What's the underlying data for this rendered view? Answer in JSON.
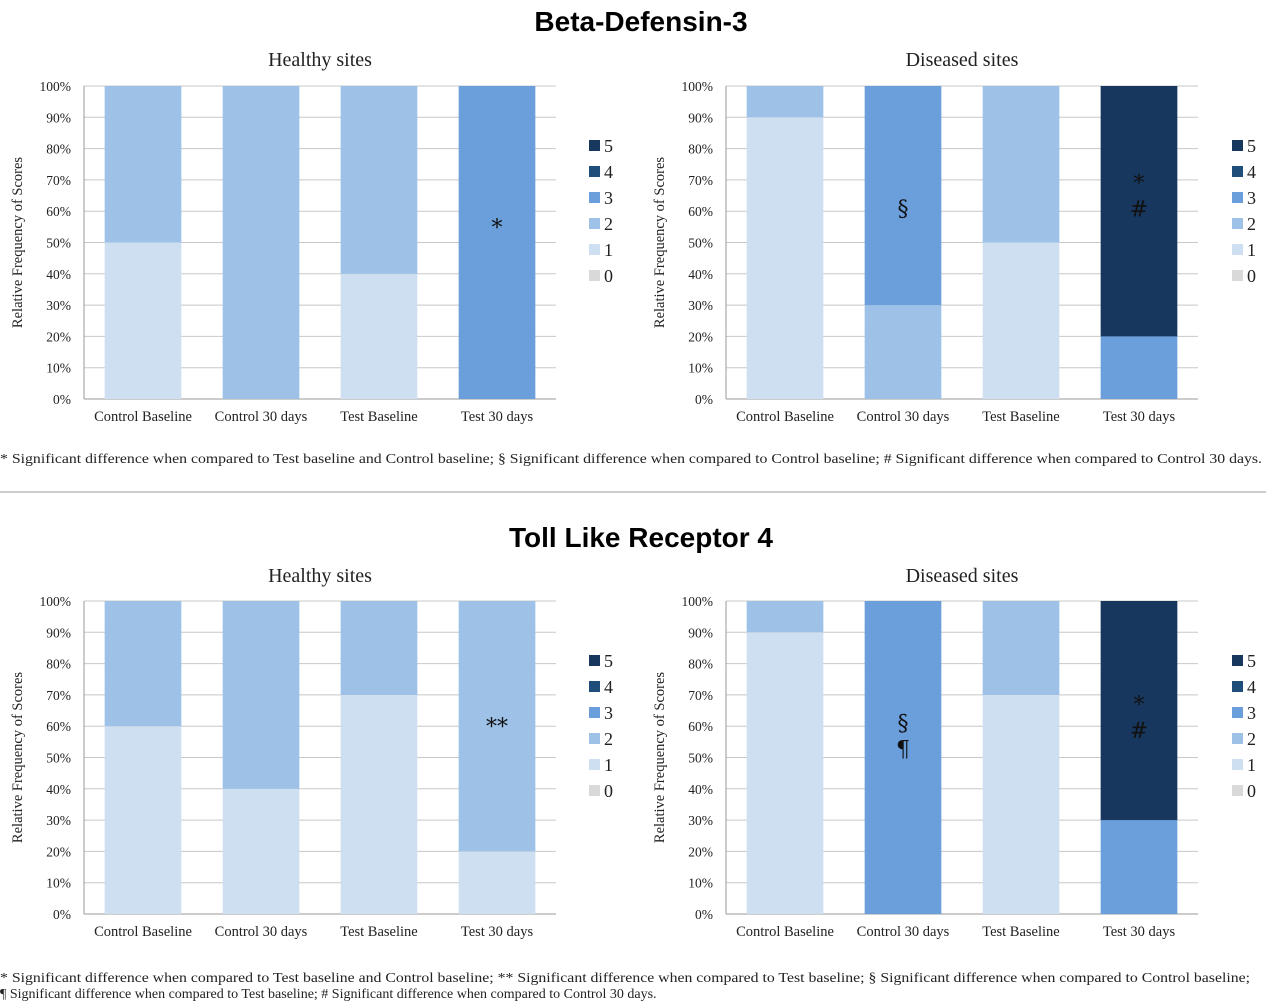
{
  "figures": [
    {
      "title": "Beta-Defensin-3",
      "footnote_lines": [
        "* Significant difference when compared to Test baseline and Control baseline; § Significant difference when compared to Control baseline; # Significant difference when compared to Control 30 days."
      ]
    },
    {
      "title": "Toll Like Receptor 4",
      "footnote_lines": [
        "* Significant difference when compared to Test baseline and Control baseline; ** Significant difference when compared to Test baseline; § Significant difference when compared to Control baseline;",
        "¶ Significant difference when compared to Test baseline; # Significant difference when compared to Control 30 days."
      ]
    }
  ],
  "colors": {
    "0": "#d9d9d9",
    "1": "#cfdff2",
    "2": "#9dc1e7",
    "3": "#6a9fdc",
    "4": "#1f4e7a",
    "5": "#17375e",
    "grid": "#c8c8c8",
    "axis": "#999999"
  },
  "chart_data": [
    {
      "type": "bar",
      "stacked": true,
      "title": "Healthy sites",
      "ylabel": "Relative Frequency of Scores",
      "ylim": [
        0,
        100
      ],
      "yticks": [
        "0%",
        "10%",
        "20%",
        "30%",
        "40%",
        "50%",
        "60%",
        "70%",
        "80%",
        "90%",
        "100%"
      ],
      "categories": [
        "Control Baseline",
        "Control 30 days",
        "Test Baseline",
        "Test 30 days"
      ],
      "legend": [
        "5",
        "4",
        "3",
        "2",
        "1",
        "0"
      ],
      "legend_position": "right",
      "series": [
        {
          "name": "0",
          "values": [
            0,
            0,
            0,
            0
          ]
        },
        {
          "name": "1",
          "values": [
            50,
            0,
            40,
            0
          ]
        },
        {
          "name": "2",
          "values": [
            50,
            100,
            60,
            0
          ]
        },
        {
          "name": "3",
          "values": [
            0,
            0,
            0,
            100
          ]
        },
        {
          "name": "4",
          "values": [
            0,
            0,
            0,
            0
          ]
        },
        {
          "name": "5",
          "values": [
            0,
            0,
            0,
            0
          ]
        }
      ],
      "annotations": [
        {
          "category": "Test 30 days",
          "lines": [
            "*"
          ],
          "y": 55
        }
      ]
    },
    {
      "type": "bar",
      "stacked": true,
      "title": "Diseased sites",
      "ylabel": "Relative Frequency of Scores",
      "ylim": [
        0,
        100
      ],
      "yticks": [
        "0%",
        "10%",
        "20%",
        "30%",
        "40%",
        "50%",
        "60%",
        "70%",
        "80%",
        "90%",
        "100%"
      ],
      "categories": [
        "Control Baseline",
        "Control 30 days",
        "Test Baseline",
        "Test 30 days"
      ],
      "legend": [
        "5",
        "4",
        "3",
        "2",
        "1",
        "0"
      ],
      "legend_position": "right",
      "series": [
        {
          "name": "0",
          "values": [
            0,
            0,
            0,
            0
          ]
        },
        {
          "name": "1",
          "values": [
            90,
            0,
            50,
            0
          ]
        },
        {
          "name": "2",
          "values": [
            10,
            30,
            50,
            0
          ]
        },
        {
          "name": "3",
          "values": [
            0,
            70,
            0,
            20
          ]
        },
        {
          "name": "4",
          "values": [
            0,
            0,
            0,
            0
          ]
        },
        {
          "name": "5",
          "values": [
            0,
            0,
            0,
            80
          ]
        }
      ],
      "annotations": [
        {
          "category": "Control 30 days",
          "lines": [
            "§"
          ],
          "y": 61
        },
        {
          "category": "Test 30 days",
          "lines": [
            "*",
            "#"
          ],
          "y": 65
        }
      ]
    },
    {
      "type": "bar",
      "stacked": true,
      "title": "Healthy sites",
      "ylabel": "Relative Frequency of Scores",
      "ylim": [
        0,
        100
      ],
      "yticks": [
        "0%",
        "10%",
        "20%",
        "30%",
        "40%",
        "50%",
        "60%",
        "70%",
        "80%",
        "90%",
        "100%"
      ],
      "categories": [
        "Control Baseline",
        "Control 30 days",
        "Test Baseline",
        "Test 30 days"
      ],
      "legend": [
        "5",
        "4",
        "3",
        "2",
        "1",
        "0"
      ],
      "legend_position": "right",
      "series": [
        {
          "name": "0",
          "values": [
            0,
            0,
            0,
            0
          ]
        },
        {
          "name": "1",
          "values": [
            60,
            40,
            70,
            20
          ]
        },
        {
          "name": "2",
          "values": [
            40,
            60,
            30,
            80
          ]
        },
        {
          "name": "3",
          "values": [
            0,
            0,
            0,
            0
          ]
        },
        {
          "name": "4",
          "values": [
            0,
            0,
            0,
            0
          ]
        },
        {
          "name": "5",
          "values": [
            0,
            0,
            0,
            0
          ]
        }
      ],
      "annotations": [
        {
          "category": "Test 30 days",
          "lines": [
            "**"
          ],
          "y": 60
        }
      ]
    },
    {
      "type": "bar",
      "stacked": true,
      "title": "Diseased sites",
      "ylabel": "Relative Frequency of Scores",
      "ylim": [
        0,
        100
      ],
      "yticks": [
        "0%",
        "10%",
        "20%",
        "30%",
        "40%",
        "50%",
        "60%",
        "70%",
        "80%",
        "90%",
        "100%"
      ],
      "categories": [
        "Control Baseline",
        "Control 30 days",
        "Test Baseline",
        "Test 30 days"
      ],
      "legend": [
        "5",
        "4",
        "3",
        "2",
        "1",
        "0"
      ],
      "legend_position": "right",
      "series": [
        {
          "name": "0",
          "values": [
            0,
            0,
            0,
            0
          ]
        },
        {
          "name": "1",
          "values": [
            90,
            0,
            70,
            0
          ]
        },
        {
          "name": "2",
          "values": [
            10,
            0,
            30,
            0
          ]
        },
        {
          "name": "3",
          "values": [
            0,
            100,
            0,
            30
          ]
        },
        {
          "name": "4",
          "values": [
            0,
            0,
            0,
            0
          ]
        },
        {
          "name": "5",
          "values": [
            0,
            0,
            0,
            70
          ]
        }
      ],
      "annotations": [
        {
          "category": "Control 30 days",
          "lines": [
            "§",
            "¶"
          ],
          "y": 57
        },
        {
          "category": "Test 30 days",
          "lines": [
            "*",
            "#"
          ],
          "y": 63
        }
      ]
    }
  ]
}
